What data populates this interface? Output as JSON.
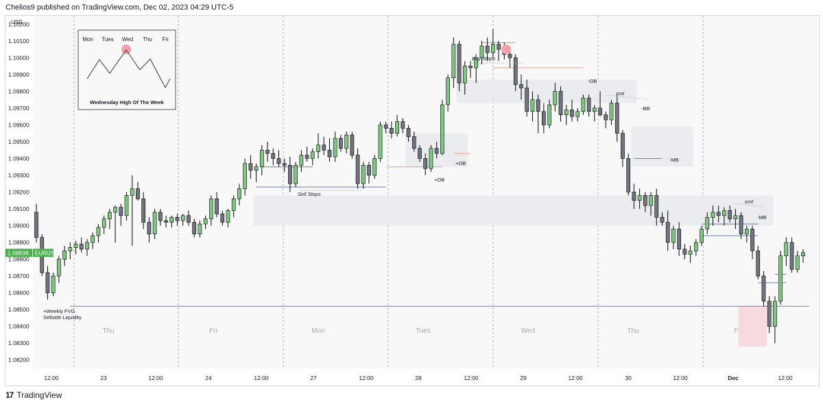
{
  "header": {
    "text": "Chelios9 published on TradingView.com, Dec 02, 2023 04:29 UTC-5"
  },
  "footer": {
    "brand": "TradingView",
    "logo_icon": "tradingview-logo-icon"
  },
  "chart_data": {
    "type": "candlestick",
    "symbol": "EURUSD",
    "currency_label": "USD",
    "last_price": "1.08838",
    "ylim": [
      1.0815,
      1.1025
    ],
    "y_ticks": [
      "1.08200",
      "1.08300",
      "1.08400",
      "1.08500",
      "1.08600",
      "1.08700",
      "1.08800",
      "1.08900",
      "1.09000",
      "1.09100",
      "1.09200",
      "1.09300",
      "1.09400",
      "1.09500",
      "1.09600",
      "1.09700",
      "1.09800",
      "1.09900",
      "1.10000",
      "1.10100",
      "1.10200"
    ],
    "x_ticks": [
      "12:00",
      "23",
      "12:00",
      "24",
      "12:00",
      "27",
      "12:00",
      "28",
      "12:00",
      "29",
      "12:00",
      "30",
      "12:00",
      "Dec",
      "12:00"
    ],
    "day_labels": [
      "Thu",
      "Fri",
      "Mon",
      "Tues",
      "Wed",
      "Thu",
      "Fri"
    ],
    "session_separators": [
      "Wed 22 / Thu 23",
      "Thu 23 / Fri 24",
      "Fri 24 / Mon 27",
      "Mon 27 / Tue 28",
      "Tue 28 / Wed 29",
      "Wed 29 / Thu 30",
      "Thu 30 / Fri Dec 1"
    ],
    "candles": [
      [
        1.0908,
        1.0913,
        1.089,
        1.0893
      ],
      [
        1.0893,
        1.0895,
        1.087,
        1.0872
      ],
      [
        1.0872,
        1.0876,
        1.0856,
        1.086
      ],
      [
        1.086,
        1.0872,
        1.0858,
        1.087
      ],
      [
        1.087,
        1.0882,
        1.0866,
        1.088
      ],
      [
        1.088,
        1.0888,
        1.0876,
        1.0885
      ],
      [
        1.0885,
        1.089,
        1.088,
        1.0887
      ],
      [
        1.0887,
        1.0891,
        1.0883,
        1.0889
      ],
      [
        1.0889,
        1.0893,
        1.0884,
        1.0886
      ],
      [
        1.0886,
        1.0892,
        1.0882,
        1.089
      ],
      [
        1.089,
        1.0896,
        1.0886,
        1.0894
      ],
      [
        1.0894,
        1.0901,
        1.089,
        1.0899
      ],
      [
        1.0899,
        1.0906,
        1.0895,
        1.0904
      ],
      [
        1.0904,
        1.091,
        1.0898,
        1.0908
      ],
      [
        1.0908,
        1.0912,
        1.089,
        1.0911
      ],
      [
        1.0911,
        1.0913,
        1.09,
        1.0906
      ],
      [
        1.0906,
        1.092,
        1.0903,
        1.0918
      ],
      [
        1.0918,
        1.093,
        1.0888,
        1.0922
      ],
      [
        1.0922,
        1.0926,
        1.0915,
        1.0916
      ],
      [
        1.0916,
        1.092,
        1.0898,
        1.0902
      ],
      [
        1.0902,
        1.0905,
        1.089,
        1.0895
      ],
      [
        1.0895,
        1.091,
        1.0892,
        1.0908
      ],
      [
        1.0908,
        1.091,
        1.09,
        1.0903
      ],
      [
        1.0903,
        1.0906,
        1.0899,
        1.0902
      ],
      [
        1.0902,
        1.0906,
        1.0899,
        1.0905
      ],
      [
        1.0905,
        1.0907,
        1.09,
        1.0903
      ],
      [
        1.0903,
        1.0907,
        1.09,
        1.0906
      ],
      [
        1.0906,
        1.0909,
        1.09,
        1.0902
      ],
      [
        1.0902,
        1.0904,
        1.0893,
        1.0895
      ],
      [
        1.0895,
        1.0903,
        1.0893,
        1.0901
      ],
      [
        1.0901,
        1.0906,
        1.0898,
        1.0904
      ],
      [
        1.0904,
        1.0918,
        1.09,
        1.0916
      ],
      [
        1.0916,
        1.092,
        1.0905,
        1.0907
      ],
      [
        1.0907,
        1.0909,
        1.09,
        1.0902
      ],
      [
        1.0902,
        1.091,
        1.0899,
        1.0909
      ],
      [
        1.0909,
        1.0918,
        1.0905,
        1.0916
      ],
      [
        1.0916,
        1.0925,
        1.0912,
        1.0922
      ],
      [
        1.0922,
        1.094,
        1.0918,
        1.0937
      ],
      [
        1.0937,
        1.0942,
        1.0928,
        1.0933
      ],
      [
        1.0933,
        1.0937,
        1.0926,
        1.0935
      ],
      [
        1.0935,
        1.0948,
        1.093,
        1.0945
      ],
      [
        1.0945,
        1.095,
        1.0938,
        1.0943
      ],
      [
        1.0943,
        1.0946,
        1.0936,
        1.094
      ],
      [
        1.094,
        1.0945,
        1.0935,
        1.0937
      ],
      [
        1.0937,
        1.094,
        1.0932,
        1.0936
      ],
      [
        1.0936,
        1.0941,
        1.092,
        1.0925
      ],
      [
        1.0925,
        1.0938,
        1.0923,
        1.0936
      ],
      [
        1.0936,
        1.0945,
        1.0932,
        1.0942
      ],
      [
        1.0942,
        1.0947,
        1.0938,
        1.094
      ],
      [
        1.094,
        1.0946,
        1.0936,
        1.0944
      ],
      [
        1.0944,
        1.0955,
        1.094,
        1.0948
      ],
      [
        1.0948,
        1.0953,
        1.0942,
        1.0945
      ],
      [
        1.0945,
        1.0952,
        1.0938,
        1.0941
      ],
      [
        1.0941,
        1.0956,
        1.0938,
        1.0952
      ],
      [
        1.0952,
        1.0954,
        1.0944,
        1.0946
      ],
      [
        1.0946,
        1.0956,
        1.0943,
        1.0954
      ],
      [
        1.0954,
        1.0956,
        1.094,
        1.0942
      ],
      [
        1.0942,
        1.0946,
        1.0922,
        1.0925
      ],
      [
        1.0925,
        1.0938,
        1.0922,
        1.0936
      ],
      [
        1.0936,
        1.0938,
        1.0925,
        1.093
      ],
      [
        1.093,
        1.0942,
        1.0928,
        1.094
      ],
      [
        1.094,
        1.0962,
        1.0938,
        1.096
      ],
      [
        1.096,
        1.0962,
        1.0955,
        1.0958
      ],
      [
        1.0958,
        1.0962,
        1.0952,
        1.0955
      ],
      [
        1.0955,
        1.0966,
        1.0953,
        1.0962
      ],
      [
        1.0962,
        1.0964,
        1.0955,
        1.0958
      ],
      [
        1.0958,
        1.096,
        1.095,
        1.0953
      ],
      [
        1.0953,
        1.0956,
        1.0944,
        1.0946
      ],
      [
        1.0946,
        1.0948,
        1.0938,
        1.094
      ],
      [
        1.094,
        1.0943,
        1.093,
        1.0934
      ],
      [
        1.0934,
        1.0948,
        1.0932,
        1.0946
      ],
      [
        1.0946,
        1.095,
        1.094,
        1.0943
      ],
      [
        1.0943,
        1.0975,
        1.0942,
        1.0972
      ],
      [
        1.0972,
        1.099,
        1.0968,
        1.0988
      ],
      [
        1.0988,
        1.1012,
        1.0982,
        1.1008
      ],
      [
        1.1008,
        1.101,
        1.098,
        1.0985
      ],
      [
        1.0985,
        1.0998,
        1.0978,
        1.0995
      ],
      [
        1.0995,
        1.0998,
        1.0988,
        1.0994
      ],
      [
        1.0994,
        1.1002,
        1.0985,
        1.1
      ],
      [
        1.1,
        1.101,
        1.0996,
        1.1007
      ],
      [
        1.1007,
        1.1012,
        1.0998,
        1.1003
      ],
      [
        1.1003,
        1.1017,
        1.1,
        1.1008
      ],
      [
        1.1008,
        1.101,
        1.0998,
        1.1005
      ],
      [
        1.1005,
        1.1009,
        1.0999,
        1.1002
      ],
      [
        1.1002,
        1.1005,
        1.0994,
        1.1
      ],
      [
        1.1,
        1.1002,
        1.098,
        1.0984
      ],
      [
        1.0984,
        1.099,
        1.0975,
        1.0982
      ],
      [
        1.0982,
        1.0987,
        1.0965,
        1.0968
      ],
      [
        1.0968,
        1.098,
        1.0962,
        1.0975
      ],
      [
        1.0975,
        1.0978,
        1.0955,
        1.0968
      ],
      [
        1.0968,
        1.0973,
        1.0955,
        1.096
      ],
      [
        1.096,
        1.0975,
        1.0958,
        1.0972
      ],
      [
        1.0972,
        1.0985,
        1.0968,
        1.098
      ],
      [
        1.098,
        1.0983,
        1.0962,
        1.0966
      ],
      [
        1.0966,
        1.0972,
        1.096,
        1.0969
      ],
      [
        1.0969,
        1.0975,
        1.0962,
        1.0965
      ],
      [
        1.0965,
        1.097,
        1.0962,
        1.0968
      ],
      [
        1.0968,
        1.0978,
        1.0966,
        1.0976
      ],
      [
        1.0976,
        1.0978,
        1.0965,
        1.0968
      ],
      [
        1.0968,
        1.0972,
        1.0962,
        1.097
      ],
      [
        1.097,
        1.098,
        1.0965,
        1.0966
      ],
      [
        1.0966,
        1.0968,
        1.0958,
        1.0963
      ],
      [
        1.0963,
        1.0975,
        1.096,
        1.0973
      ],
      [
        1.0973,
        1.0978,
        1.095,
        1.0955
      ],
      [
        1.0955,
        1.0957,
        1.0935,
        1.094
      ],
      [
        1.094,
        1.0943,
        1.0918,
        1.092
      ],
      [
        1.092,
        1.0925,
        1.091,
        1.0915
      ],
      [
        1.0915,
        1.0922,
        1.091,
        1.0918
      ],
      [
        1.0918,
        1.092,
        1.0908,
        1.0912
      ],
      [
        1.0912,
        1.092,
        1.0906,
        1.0918
      ],
      [
        1.0918,
        1.0922,
        1.09,
        1.0905
      ],
      [
        1.0905,
        1.0908,
        1.09,
        1.0902
      ],
      [
        1.0902,
        1.0909,
        1.0885,
        1.089
      ],
      [
        1.089,
        1.09,
        1.0886,
        1.0898
      ],
      [
        1.0898,
        1.0902,
        1.0882,
        1.0886
      ],
      [
        1.0886,
        1.0889,
        1.088,
        1.0883
      ],
      [
        1.0883,
        1.0888,
        1.0878,
        1.0885
      ],
      [
        1.0885,
        1.0892,
        1.0882,
        1.089
      ],
      [
        1.089,
        1.09,
        1.0888,
        1.0898
      ],
      [
        1.0898,
        1.0908,
        1.0895,
        1.0905
      ],
      [
        1.0905,
        1.0912,
        1.09,
        1.0908
      ],
      [
        1.0908,
        1.0912,
        1.0902,
        1.0906
      ],
      [
        1.0906,
        1.0911,
        1.09,
        1.0909
      ],
      [
        1.0909,
        1.0912,
        1.0902,
        1.0904
      ],
      [
        1.0904,
        1.091,
        1.0898,
        1.0906
      ],
      [
        1.0906,
        1.0908,
        1.0892,
        1.0895
      ],
      [
        1.0895,
        1.09,
        1.089,
        1.0898
      ],
      [
        1.0898,
        1.09,
        1.088,
        1.0885
      ],
      [
        1.0885,
        1.0888,
        1.0868,
        1.087
      ],
      [
        1.087,
        1.0873,
        1.0852,
        1.0855
      ],
      [
        1.0855,
        1.0858,
        1.0836,
        1.084
      ],
      [
        1.084,
        1.0858,
        1.083,
        1.0855
      ],
      [
        1.0855,
        1.0885,
        1.0853,
        1.0882
      ],
      [
        1.0882,
        1.0893,
        1.0876,
        1.089
      ],
      [
        1.089,
        1.0893,
        1.0872,
        1.0874
      ],
      [
        1.0874,
        1.0885,
        1.0872,
        1.0882
      ],
      [
        1.0882,
        1.0886,
        1.0878,
        1.0884
      ]
    ],
    "zones": [
      {
        "name": "weekly-fvg-zone",
        "from": 39,
        "to": 999,
        "low": 1.09,
        "high": 1.0918
      },
      {
        "name": "bullish-ob-zone",
        "from": 66,
        "to": 76,
        "low": 1.0935,
        "high": 1.0955
      },
      {
        "name": "bb-zone",
        "from": 75,
        "to": 106,
        "low": 1.0973,
        "high": 1.0987
      },
      {
        "name": "mb-zone",
        "from": 106,
        "to": 116,
        "low": 1.0935,
        "high": 1.0959
      },
      {
        "name": "friday-low-highlight",
        "from": 125,
        "to": 129,
        "low": 1.0828,
        "high": 1.0852
      }
    ],
    "levels": [
      {
        "name": "weekly-fvg-line",
        "price": 1.0852,
        "from": 6,
        "to": 999,
        "color": "#6c7fad"
      },
      {
        "name": "sell-stops-line",
        "price": 1.0923,
        "from": 39,
        "to": 62,
        "color": "#6c7fad"
      },
      {
        "name": "sell-stops-line-2",
        "price": 1.0935,
        "from": 40,
        "to": 49,
        "color": "#6c7fad"
      },
      {
        "name": "ob-line-top",
        "price": 1.0943,
        "from": 74,
        "to": 77,
        "color": "#e0a080"
      },
      {
        "name": "ob-line-bottom",
        "price": 1.0935,
        "from": 62,
        "to": 72,
        "color": "#e0a080"
      },
      {
        "name": "minus-ob-line",
        "price": 1.0994,
        "from": 81,
        "to": 97,
        "color": "#e0a080"
      },
      {
        "name": "buy-stops-line",
        "price": 1.1009,
        "from": 79,
        "to": 85,
        "color": "#999999"
      },
      {
        "name": "mb-line-1",
        "price": 1.094,
        "from": 106,
        "to": 111,
        "color": "#6c7fad"
      },
      {
        "name": "mb-line-2",
        "price": 1.0901,
        "from": 118,
        "to": 128,
        "color": "#6c7fad"
      },
      {
        "name": "mb-line-3",
        "price": 1.0894,
        "from": 118,
        "to": 128,
        "color": "#6c7fad"
      },
      {
        "name": "friday-line-1",
        "price": 1.0871,
        "from": 131,
        "to": 133,
        "color": "#6c7fad"
      },
      {
        "name": "friday-line-2",
        "price": 1.0866,
        "from": 128,
        "to": 133,
        "color": "#6c7fad"
      }
    ],
    "annotations": [
      {
        "name": "buy-stops-label",
        "text": "Buy Stops",
        "italic": true
      },
      {
        "name": "sell-stops-label",
        "text": "Sell Stops",
        "italic": true
      },
      {
        "name": "plus-ob-label-1",
        "text": "+OB"
      },
      {
        "name": "plus-ob-label-2",
        "text": "+OB"
      },
      {
        "name": "minus-ob-label",
        "text": "-OB"
      },
      {
        "name": "smt-label-1",
        "text": "smt",
        "italic": true
      },
      {
        "name": "smt-label-2",
        "text": "smt",
        "italic": true
      },
      {
        "name": "bb-label",
        "text": "-BB"
      },
      {
        "name": "mb-label-1",
        "text": "-MB"
      },
      {
        "name": "mb-label-2",
        "text": "-MB"
      },
      {
        "name": "weekly-fvg-label-1",
        "text": "+Weekly FVG"
      },
      {
        "name": "weekly-fvg-label-2",
        "text": "Sellside Liquidity"
      }
    ],
    "inset": {
      "days": [
        "Mon",
        "Tues",
        "Wed",
        "Thu",
        "Fri"
      ],
      "caption": "Wednesday High Of The Week"
    },
    "colors": {
      "bull": "#81c784",
      "bear": "#707580",
      "wick": "#000000",
      "zone": "#e9eaed",
      "highlight": "#f6d6da",
      "marker": "#f4a0a8",
      "symbol_badge": "#4caf50"
    }
  }
}
